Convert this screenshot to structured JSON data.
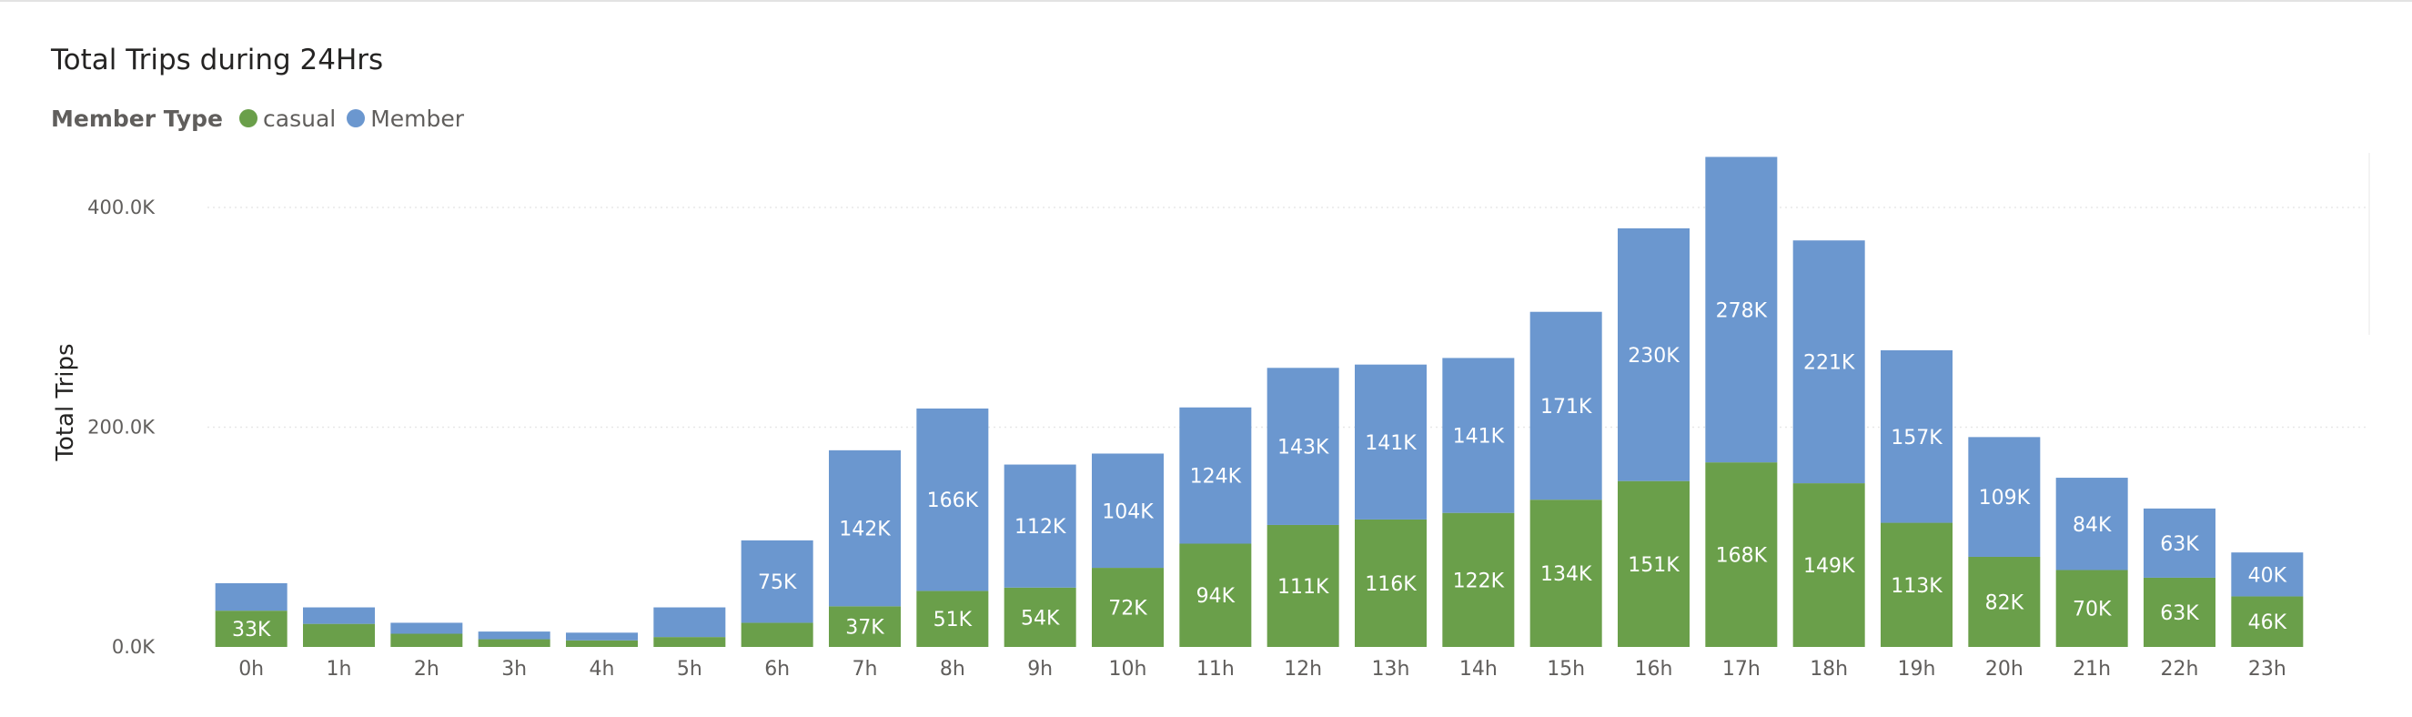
{
  "title": "Total Trips during 24Hrs",
  "legend": {
    "title": "Member Type",
    "items": [
      {
        "label": "casual",
        "color": "#6a9f4a"
      },
      {
        "label": "Member",
        "color": "#6b97cf"
      }
    ]
  },
  "chart_data": {
    "type": "bar",
    "stacked": true,
    "title": "Total Trips during 24Hrs",
    "xlabel": "",
    "ylabel": "Total Trips",
    "ylim": [
      0,
      450000
    ],
    "yticks": [
      0,
      200000,
      400000
    ],
    "ytick_labels": [
      "0.0K",
      "200.0K",
      "400.0K"
    ],
    "grid": true,
    "legend_position": "top-left",
    "categories": [
      "0h",
      "1h",
      "2h",
      "3h",
      "4h",
      "5h",
      "6h",
      "7h",
      "8h",
      "9h",
      "10h",
      "11h",
      "12h",
      "13h",
      "14h",
      "15h",
      "16h",
      "17h",
      "18h",
      "19h",
      "20h",
      "21h",
      "22h",
      "23h"
    ],
    "series": [
      {
        "name": "casual",
        "color": "#6a9f4a",
        "values": [
          33000,
          21000,
          12000,
          7000,
          6000,
          9000,
          22000,
          37000,
          51000,
          54000,
          72000,
          94000,
          111000,
          116000,
          122000,
          134000,
          151000,
          168000,
          149000,
          113000,
          82000,
          70000,
          63000,
          46000
        ],
        "labels": [
          "33K",
          "",
          "",
          "",
          "",
          "",
          "",
          "37K",
          "51K",
          "54K",
          "72K",
          "94K",
          "111K",
          "116K",
          "122K",
          "134K",
          "151K",
          "168K",
          "149K",
          "113K",
          "82K",
          "70K",
          "63K",
          "46K"
        ]
      },
      {
        "name": "Member",
        "color": "#6b97cf",
        "values": [
          25000,
          15000,
          10000,
          7000,
          7000,
          27000,
          75000,
          142000,
          166000,
          112000,
          104000,
          124000,
          143000,
          141000,
          141000,
          171000,
          230000,
          278000,
          221000,
          157000,
          109000,
          84000,
          63000,
          40000
        ],
        "labels": [
          "",
          "",
          "",
          "",
          "",
          "",
          "75K",
          "142K",
          "166K",
          "112K",
          "104K",
          "124K",
          "143K",
          "141K",
          "141K",
          "171K",
          "230K",
          "278K",
          "221K",
          "157K",
          "109K",
          "84K",
          "63K",
          "40K"
        ]
      }
    ]
  }
}
